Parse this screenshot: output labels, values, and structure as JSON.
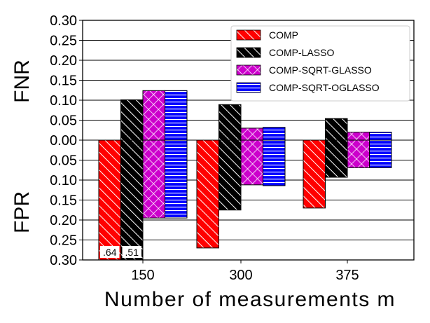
{
  "chart_data": {
    "type": "bar",
    "xlabel": "Number of measurements m",
    "ylabel_top": "FNR",
    "ylabel_bottom": "FPR",
    "ylim": [
      -0.3,
      0.3
    ],
    "yticks": [
      0.3,
      0.25,
      0.2,
      0.15,
      0.1,
      0.05,
      0.0,
      -0.05,
      -0.1,
      -0.15,
      -0.2,
      -0.25,
      -0.3
    ],
    "ytick_labels": [
      "0.30",
      "0.25",
      "0.20",
      "0.15",
      "0.10",
      "0.05",
      "0.00",
      "0.05",
      "0.10",
      "0.15",
      "0.20",
      "0.25",
      "0.30"
    ],
    "categories": [
      "150",
      "300",
      "375"
    ],
    "grid": "horizontal",
    "legend_position": "top-right",
    "series": [
      {
        "name": "COMP",
        "color": "#ff0000",
        "hatch": "diagonal-white",
        "fnr": [
          0.0,
          0.0,
          0.0
        ],
        "fpr": [
          0.64,
          0.27,
          0.17
        ],
        "fpr_labels": [
          ".64",
          "",
          ""
        ]
      },
      {
        "name": "COMP-LASSO",
        "color": "#000000",
        "hatch": "diagonal-white",
        "fnr": [
          0.101,
          0.089,
          0.054
        ],
        "fpr": [
          0.51,
          0.175,
          0.093
        ],
        "fpr_labels": [
          ".51",
          "",
          ""
        ]
      },
      {
        "name": "COMP-SQRT-GLASSO",
        "color": "#cc00cc",
        "hatch": "crosshatch-white",
        "fnr": [
          0.124,
          0.03,
          0.02
        ],
        "fpr": [
          0.195,
          0.112,
          0.069
        ],
        "fpr_labels": [
          "",
          "",
          ""
        ]
      },
      {
        "name": "COMP-SQRT-OGLASSO",
        "color": "#0000ff",
        "hatch": "horizontal-white",
        "fnr": [
          0.124,
          0.032,
          0.02
        ],
        "fpr": [
          0.195,
          0.114,
          0.069
        ],
        "fpr_labels": [
          "",
          "",
          ""
        ]
      }
    ]
  }
}
